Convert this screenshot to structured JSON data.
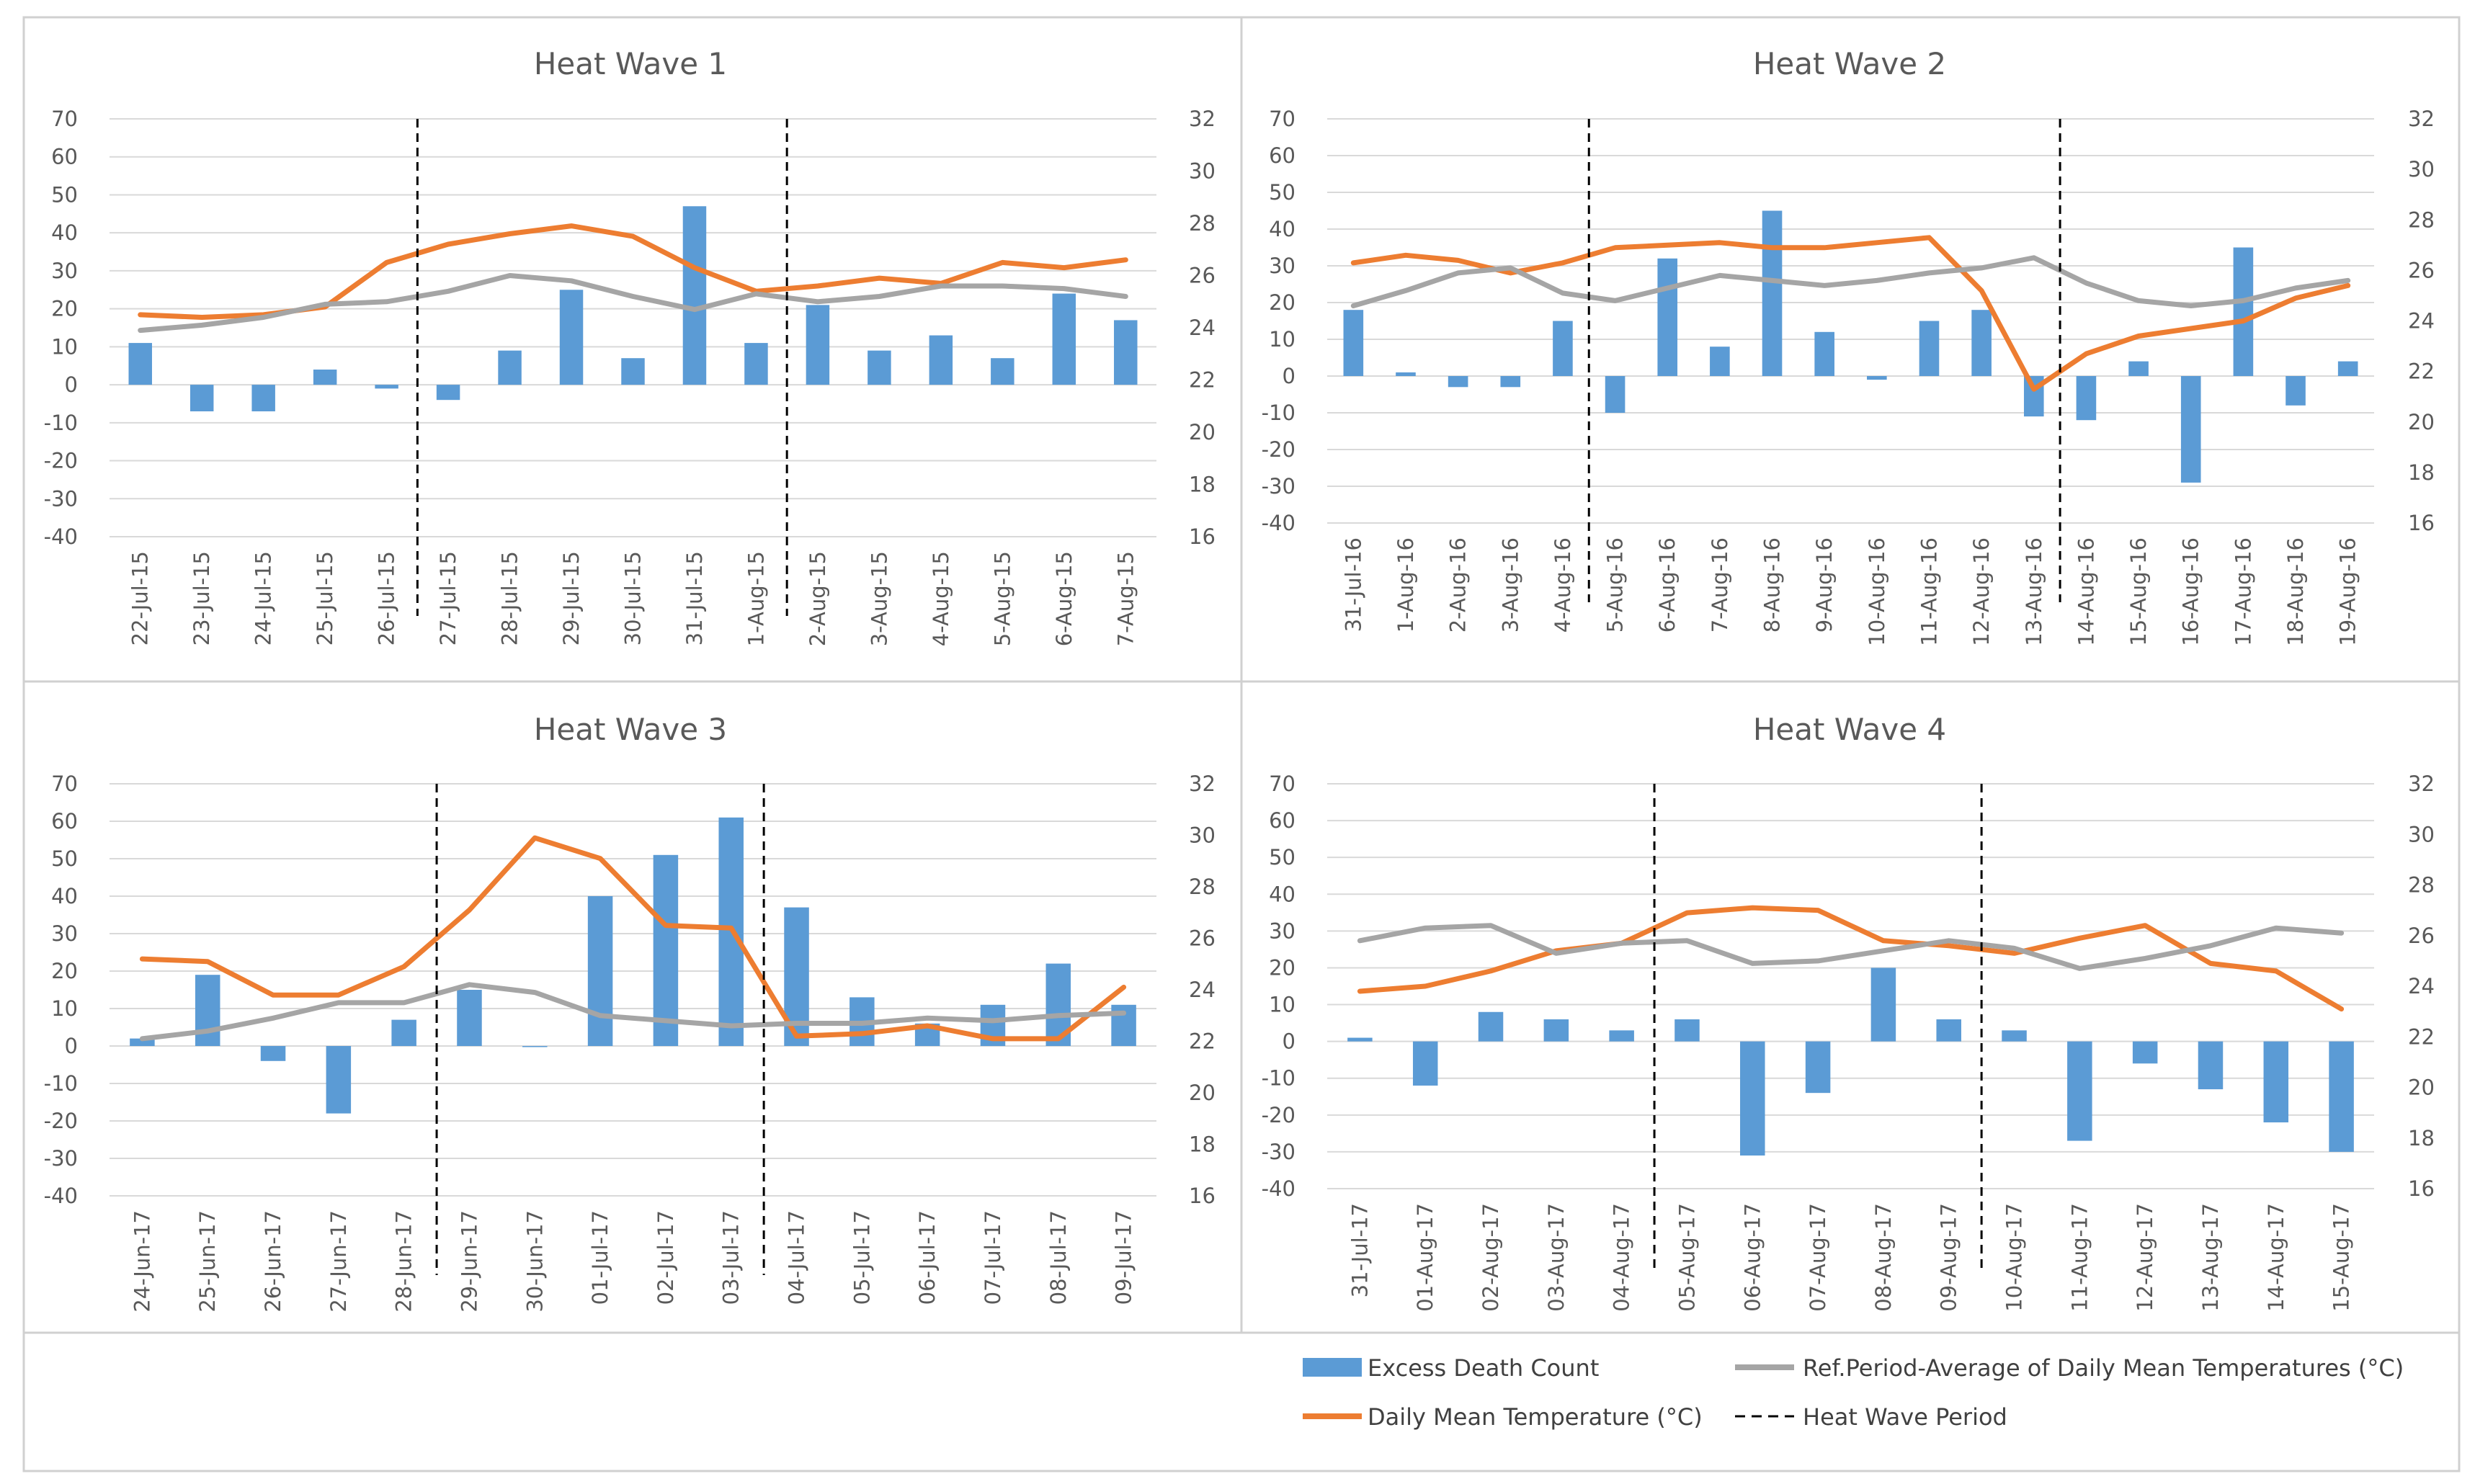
{
  "colors": {
    "bar": "#5B9BD5",
    "temp": "#ED7D31",
    "ref": "#A5A5A5",
    "grid": "#D9D9D9",
    "text": "#595959",
    "frame": "#D0D0D0"
  },
  "legend": {
    "bar": "Excess Death Count",
    "ref": "Ref.Period-Average of Daily Mean Temperatures (°C)",
    "temp": "Daily Mean Temperature (°C)",
    "hw": "Heat Wave Period"
  },
  "chart_data": [
    {
      "type": "bar",
      "title": "Heat Wave 1",
      "left_axis": {
        "min": -40,
        "max": 70,
        "step": 10,
        "label": ""
      },
      "right_axis": {
        "min": 16,
        "max": 32,
        "step": 2,
        "label": ""
      },
      "categories": [
        "22-Jul-15",
        "23-Jul-15",
        "24-Jul-15",
        "25-Jul-15",
        "26-Jul-15",
        "27-Jul-15",
        "28-Jul-15",
        "29-Jul-15",
        "30-Jul-15",
        "31-Jul-15",
        "1-Aug-15",
        "2-Aug-15",
        "3-Aug-15",
        "4-Aug-15",
        "5-Aug-15",
        "6-Aug-15",
        "7-Aug-15"
      ],
      "series": [
        {
          "name": "Excess Death Count",
          "axis": "left",
          "kind": "bar",
          "values": [
            11,
            -7,
            -7,
            4,
            -1,
            -4,
            9,
            25,
            7,
            47,
            11,
            21,
            9,
            13,
            7,
            24,
            17
          ]
        },
        {
          "name": "Daily Mean Temperature (°C)",
          "axis": "right",
          "kind": "line",
          "values": [
            24.5,
            24.4,
            24.5,
            24.8,
            26.5,
            27.2,
            27.6,
            27.9,
            27.5,
            26.3,
            25.4,
            25.6,
            25.9,
            25.7,
            26.5,
            26.3,
            26.6
          ]
        },
        {
          "name": "Ref.Period-Average of Daily Mean Temperatures (°C)",
          "axis": "right",
          "kind": "line",
          "values": [
            23.9,
            24.1,
            24.4,
            24.9,
            25.0,
            25.4,
            26.0,
            25.8,
            25.2,
            24.7,
            25.3,
            25.0,
            25.2,
            25.6,
            25.6,
            25.5,
            25.2
          ]
        }
      ],
      "heatwave_boundaries": [
        "27-Jul-15",
        "2-Aug-15"
      ]
    },
    {
      "type": "bar",
      "title": "Heat Wave 2",
      "left_axis": {
        "min": -40,
        "max": 70,
        "step": 10,
        "label": ""
      },
      "right_axis": {
        "min": 16,
        "max": 32,
        "step": 2,
        "label": ""
      },
      "categories": [
        "31-Jul-16",
        "1-Aug-16",
        "2-Aug-16",
        "3-Aug-16",
        "4-Aug-16",
        "5-Aug-16",
        "6-Aug-16",
        "7-Aug-16",
        "8-Aug-16",
        "9-Aug-16",
        "10-Aug-16",
        "11-Aug-16",
        "12-Aug-16",
        "13-Aug-16",
        "14-Aug-16",
        "15-Aug-16",
        "16-Aug-16",
        "17-Aug-16",
        "18-Aug-16",
        "19-Aug-16"
      ],
      "series": [
        {
          "name": "Excess Death Count",
          "axis": "left",
          "kind": "bar",
          "values": [
            18,
            1,
            -3,
            -3,
            15,
            -10,
            32,
            8,
            45,
            12,
            -1,
            15,
            18,
            -11,
            -12,
            4,
            -29,
            35,
            -8,
            4
          ]
        },
        {
          "name": "Daily Mean Temperature (°C)",
          "axis": "right",
          "kind": "line",
          "values": [
            26.3,
            26.6,
            26.4,
            25.9,
            26.3,
            26.9,
            27.0,
            27.1,
            26.9,
            26.9,
            27.1,
            27.3,
            25.2,
            21.3,
            22.7,
            23.4,
            23.7,
            24.0,
            24.9,
            25.4
          ]
        },
        {
          "name": "Ref.Period-Average of Daily Mean Temperatures (°C)",
          "axis": "right",
          "kind": "line",
          "values": [
            24.6,
            25.2,
            25.9,
            26.1,
            25.1,
            24.8,
            25.3,
            25.8,
            25.6,
            25.4,
            25.6,
            25.9,
            26.1,
            26.5,
            25.5,
            24.8,
            24.6,
            24.8,
            25.3,
            25.6
          ]
        }
      ],
      "heatwave_boundaries": [
        "5-Aug-16",
        "14-Aug-16"
      ]
    },
    {
      "type": "bar",
      "title": "Heat Wave 3",
      "left_axis": {
        "min": -40,
        "max": 70,
        "step": 10,
        "label": ""
      },
      "right_axis": {
        "min": 16,
        "max": 32,
        "step": 2,
        "label": ""
      },
      "categories": [
        "24-Jun-17",
        "25-Jun-17",
        "26-Jun-17",
        "27-Jun-17",
        "28-Jun-17",
        "29-Jun-17",
        "30-Jun-17",
        "01-Jul-17",
        "02-Jul-17",
        "03-Jul-17",
        "04-Jul-17",
        "05-Jul-17",
        "06-Jul-17",
        "07-Jul-17",
        "08-Jul-17",
        "09-Jul-17"
      ],
      "series": [
        {
          "name": "Excess Death Count",
          "axis": "left",
          "kind": "bar",
          "values": [
            2,
            19,
            -4,
            -18,
            7,
            15,
            0,
            40,
            51,
            61,
            37,
            13,
            6,
            11,
            22,
            11
          ]
        },
        {
          "name": "Daily Mean Temperature (°C)",
          "axis": "right",
          "kind": "line",
          "values": [
            25.2,
            25.1,
            23.8,
            23.8,
            24.9,
            27.1,
            29.9,
            29.1,
            26.5,
            26.4,
            22.2,
            22.3,
            22.6,
            22.1,
            22.1,
            24.1
          ]
        },
        {
          "name": "Ref.Period-Average of Daily Mean Temperatures (°C)",
          "axis": "right",
          "kind": "line",
          "values": [
            22.1,
            22.4,
            22.9,
            23.5,
            23.5,
            24.2,
            23.9,
            23.0,
            22.8,
            22.6,
            22.7,
            22.7,
            22.9,
            22.8,
            23.0,
            23.1
          ]
        }
      ],
      "heatwave_boundaries": [
        "29-Jun-17",
        "04-Jul-17"
      ]
    },
    {
      "type": "bar",
      "title": "Heat Wave 4",
      "left_axis": {
        "min": -40,
        "max": 70,
        "step": 10,
        "label": ""
      },
      "right_axis": {
        "min": 16,
        "max": 32,
        "step": 2,
        "label": ""
      },
      "categories": [
        "31-Jul-17",
        "01-Aug-17",
        "02-Aug-17",
        "03-Aug-17",
        "04-Aug-17",
        "05-Aug-17",
        "06-Aug-17",
        "07-Aug-17",
        "08-Aug-17",
        "09-Aug-17",
        "10-Aug-17",
        "11-Aug-17",
        "12-Aug-17",
        "13-Aug-17",
        "14-Aug-17",
        "15-Aug-17"
      ],
      "series": [
        {
          "name": "Excess Death Count",
          "axis": "left",
          "kind": "bar",
          "values": [
            1,
            -12,
            8,
            6,
            3,
            6,
            -31,
            -14,
            20,
            6,
            3,
            -27,
            -6,
            -13,
            -22,
            -30
          ]
        },
        {
          "name": "Daily Mean Temperature (°C)",
          "axis": "right",
          "kind": "line",
          "values": [
            23.8,
            24.0,
            24.6,
            25.4,
            25.7,
            26.9,
            27.1,
            27.0,
            25.8,
            25.6,
            25.3,
            25.9,
            26.4,
            24.9,
            24.6,
            23.1
          ]
        },
        {
          "name": "Ref.Period-Average of Daily Mean Temperatures (°C)",
          "axis": "right",
          "kind": "line",
          "values": [
            25.8,
            26.3,
            26.4,
            25.3,
            25.7,
            25.8,
            24.9,
            25.0,
            25.4,
            25.8,
            25.5,
            24.7,
            25.1,
            25.6,
            26.3,
            26.1
          ]
        }
      ],
      "heatwave_boundaries": [
        "05-Aug-17",
        "10-Aug-17"
      ]
    }
  ]
}
